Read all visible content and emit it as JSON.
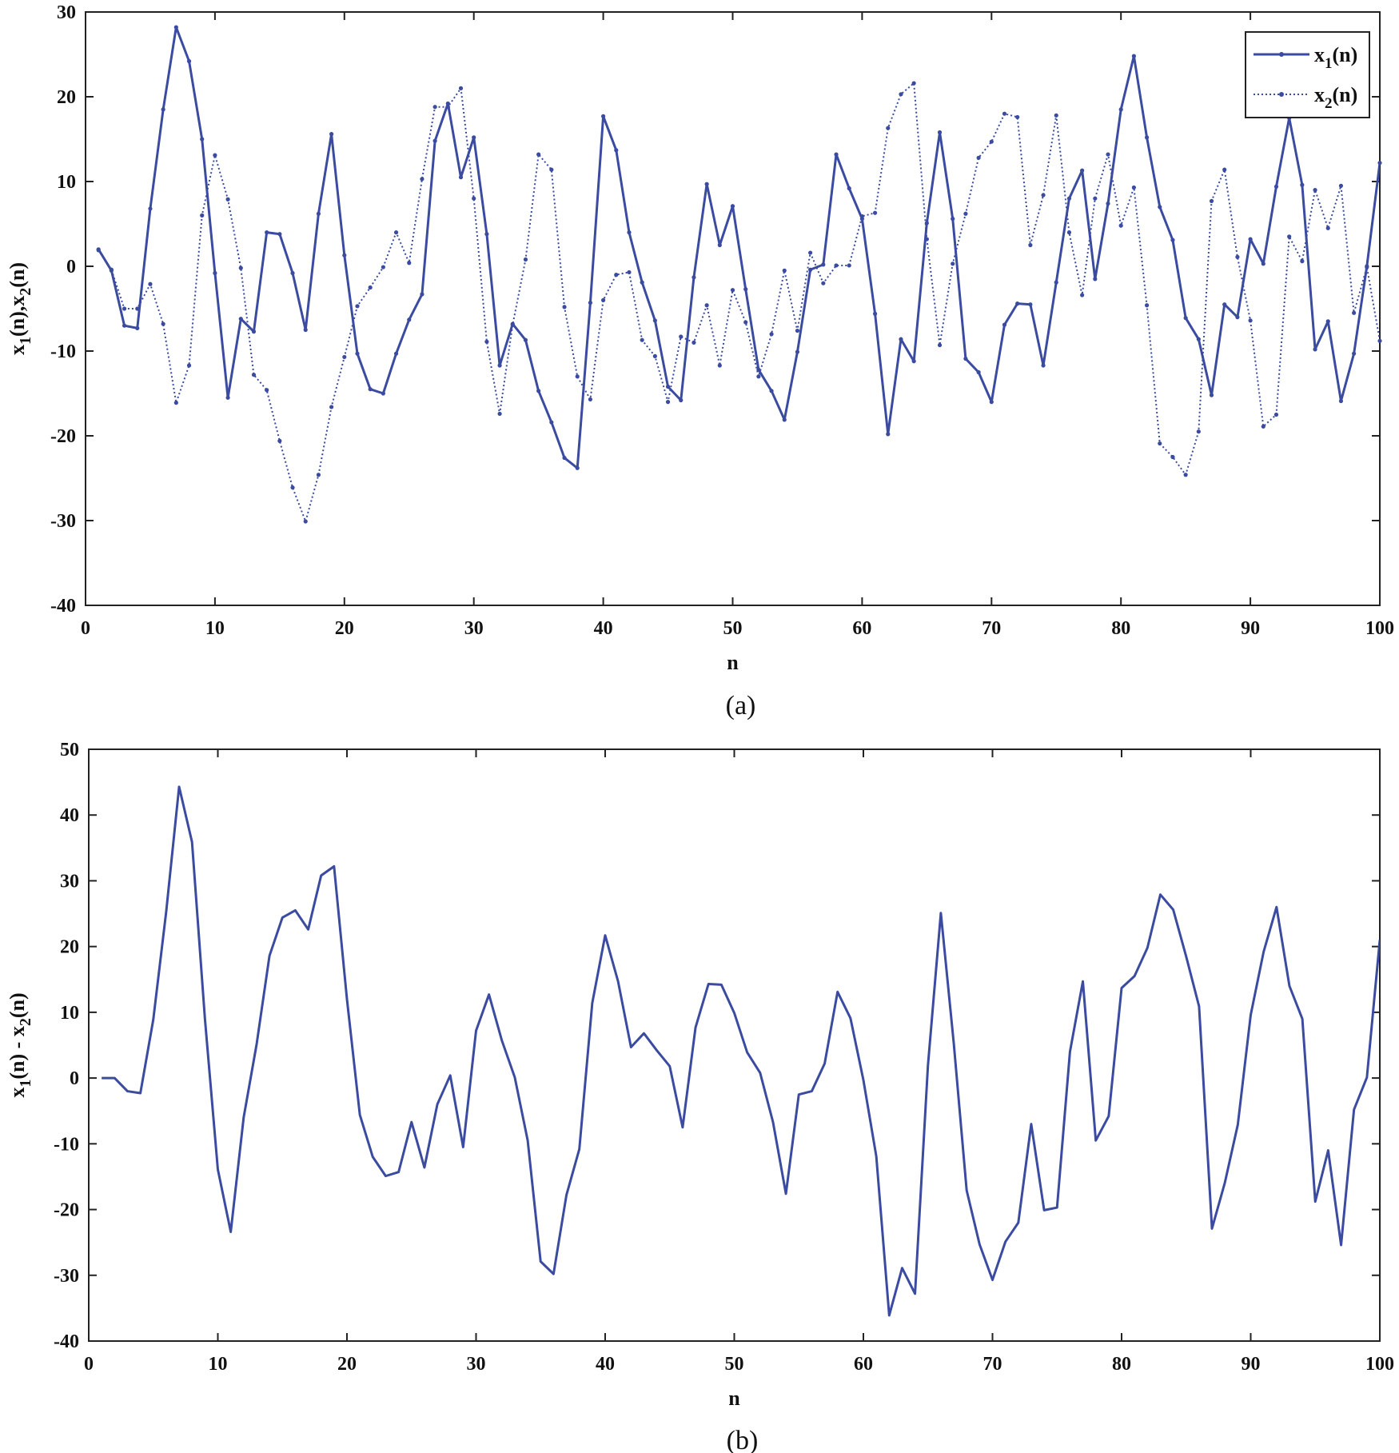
{
  "chart_data": [
    {
      "type": "line",
      "caption": "(a)",
      "xlabel": "n",
      "ylabel": {
        "parts": [
          [
            "x",
            "1",
            "(n),"
          ],
          [
            "x",
            "2",
            "(n)"
          ]
        ]
      },
      "xlim": [
        0,
        100
      ],
      "ylim": [
        -40,
        30
      ],
      "xticks": [
        0,
        10,
        20,
        30,
        40,
        50,
        60,
        70,
        80,
        90,
        100
      ],
      "yticks": [
        -40,
        -30,
        -20,
        -10,
        0,
        10,
        20,
        30
      ],
      "grid": false,
      "legend_position": "top-right",
      "x": [
        1,
        2,
        3,
        4,
        5,
        6,
        7,
        8,
        9,
        10,
        11,
        12,
        13,
        14,
        15,
        16,
        17,
        18,
        19,
        20,
        21,
        22,
        23,
        24,
        25,
        26,
        27,
        28,
        29,
        30,
        31,
        32,
        33,
        34,
        35,
        36,
        37,
        38,
        39,
        40,
        41,
        42,
        43,
        44,
        45,
        46,
        47,
        48,
        49,
        50,
        51,
        52,
        53,
        54,
        55,
        56,
        57,
        58,
        59,
        60,
        61,
        62,
        63,
        64,
        65,
        66,
        67,
        68,
        69,
        70,
        71,
        72,
        73,
        74,
        75,
        76,
        77,
        78,
        79,
        80,
        81,
        82,
        83,
        84,
        85,
        86,
        87,
        88,
        89,
        90,
        91,
        92,
        93,
        94,
        95,
        96,
        97,
        98,
        99,
        100
      ],
      "series": [
        {
          "name": "x1(n)",
          "legend": {
            "base": "x",
            "sub": "1",
            "rest": "(n)"
          },
          "style": "solid",
          "color": "#3a4ba0",
          "values": [
            2,
            -0.5,
            -7,
            -7.3,
            6.8,
            18.5,
            28.2,
            24.2,
            15,
            -0.8,
            -15.5,
            -6.2,
            -7.7,
            4,
            3.8,
            -0.8,
            -7.5,
            6.2,
            15.6,
            1.3,
            -10.3,
            -14.5,
            -15,
            -10.3,
            -6.3,
            -3.3,
            14.8,
            19.2,
            10.5,
            15.2,
            3.8,
            -11.7,
            -6.8,
            -8.7,
            -14.7,
            -18.4,
            -22.6,
            -23.8,
            -4.3,
            17.7,
            13.7,
            4,
            -1.9,
            -6.4,
            -14.2,
            -15.8,
            -1.3,
            9.7,
            2.5,
            7.1,
            -2.7,
            -12.2,
            -14.7,
            -18.1,
            -10.1,
            -0.4,
            0.2,
            13.2,
            9.2,
            5.6,
            -5.6,
            -19.8,
            -8.6,
            -11.2,
            5.1,
            15.8,
            5.6,
            -10.9,
            -12.5,
            -16,
            -6.9,
            -4.4,
            -4.5,
            -11.7,
            -1.9,
            8,
            11.3,
            -1.5,
            7.4,
            18.5,
            24.8,
            15.2,
            7,
            3.1,
            -6.1,
            -8.6,
            -15.2,
            -4.5,
            -6,
            3.2,
            0.3,
            9.4,
            17.5,
            9.6,
            -9.8,
            -6.5,
            -15.9,
            -10.3,
            0,
            12.2
          ]
        },
        {
          "name": "x2(n)",
          "legend": {
            "base": "x",
            "sub": "2",
            "rest": "(n)"
          },
          "style": "dotted",
          "color": "#3a4ba0",
          "values": [
            1.9,
            -0.4,
            -5,
            -5,
            -2.1,
            -6.8,
            -16.1,
            -11.7,
            6,
            13.1,
            7.9,
            -0.2,
            -12.8,
            -14.6,
            -20.6,
            -26.1,
            -30.1,
            -24.6,
            -16.6,
            -10.7,
            -4.7,
            -2.5,
            -0.1,
            4,
            0.4,
            10.3,
            18.8,
            18.8,
            21,
            8,
            -8.9,
            -17.4,
            -6.9,
            0.8,
            13.2,
            11.4,
            -4.8,
            -13,
            -15.7,
            -4,
            -1,
            -0.7,
            -8.7,
            -10.6,
            -16,
            -8.3,
            -9,
            -4.6,
            -11.7,
            -2.8,
            -6.6,
            -13,
            -8,
            -0.5,
            -7.6,
            1.6,
            -2,
            0.1,
            0.1,
            5.9,
            6.3,
            16.3,
            20.3,
            21.6,
            3.2,
            -9.3,
            0.3,
            6.2,
            12.8,
            14.7,
            18,
            17.6,
            2.5,
            8.4,
            17.8,
            4,
            -3.4,
            8,
            13.2,
            4.8,
            9.3,
            -4.6,
            -20.9,
            -22.5,
            -24.6,
            -19.5,
            7.7,
            11.4,
            1.1,
            -6.4,
            -18.9,
            -17.5,
            3.5,
            0.6,
            9,
            4.5,
            9.5,
            -5.5,
            -0.1,
            -8.8
          ]
        }
      ]
    },
    {
      "type": "line",
      "caption": "(b)",
      "xlabel": "n",
      "ylabel": {
        "parts": [
          [
            "x",
            "1",
            "(n) - "
          ],
          [
            "x",
            "2",
            "(n)"
          ]
        ]
      },
      "xlim": [
        0,
        100
      ],
      "ylim": [
        -40,
        50
      ],
      "xticks": [
        0,
        10,
        20,
        30,
        40,
        50,
        60,
        70,
        80,
        90,
        100
      ],
      "yticks": [
        -40,
        -30,
        -20,
        -10,
        0,
        10,
        20,
        30,
        40,
        50
      ],
      "grid": false,
      "x": [
        1,
        2,
        3,
        4,
        5,
        6,
        7,
        8,
        9,
        10,
        11,
        12,
        13,
        14,
        15,
        16,
        17,
        18,
        19,
        20,
        21,
        22,
        23,
        24,
        25,
        26,
        27,
        28,
        29,
        30,
        31,
        32,
        33,
        34,
        35,
        36,
        37,
        38,
        39,
        40,
        41,
        42,
        43,
        44,
        45,
        46,
        47,
        48,
        49,
        50,
        51,
        52,
        53,
        54,
        55,
        56,
        57,
        58,
        59,
        60,
        61,
        62,
        63,
        64,
        65,
        66,
        67,
        68,
        69,
        70,
        71,
        72,
        73,
        74,
        75,
        76,
        77,
        78,
        79,
        80,
        81,
        82,
        83,
        84,
        85,
        86,
        87,
        88,
        89,
        90,
        91,
        92,
        93,
        94,
        95,
        96,
        97,
        98,
        99,
        100
      ],
      "series": [
        {
          "style": "solid",
          "color": "#3a4ba0",
          "values": [
            0,
            0,
            -2,
            -2.3,
            8.9,
            25.3,
            44.3,
            35.9,
            9,
            -13.9,
            -23.4,
            -6,
            5.1,
            18.6,
            24.4,
            25.5,
            22.6,
            30.8,
            32.2,
            12,
            -5.6,
            -12,
            -14.9,
            -14.3,
            -6.7,
            -13.6,
            -4,
            0.4,
            -10.5,
            7.2,
            12.7,
            5.7,
            0.1,
            -9.5,
            -27.9,
            -29.8,
            -17.8,
            -10.8,
            11.4,
            21.7,
            14.7,
            4.7,
            6.8,
            4.2,
            1.8,
            -7.5,
            7.7,
            14.3,
            14.2,
            9.9,
            3.9,
            0.8,
            -6.7,
            -17.6,
            -2.5,
            -2,
            2.2,
            13.1,
            9.1,
            -0.3,
            -11.9,
            -36.1,
            -28.9,
            -32.8,
            1.9,
            25.1,
            5.3,
            -17.1,
            -25.3,
            -30.7,
            -24.9,
            -22,
            -7,
            -20.1,
            -19.7,
            4,
            14.7,
            -9.5,
            -5.8,
            13.7,
            15.5,
            19.8,
            27.9,
            25.6,
            18.5,
            10.9,
            -22.9,
            -15.9,
            -7.1,
            9.6,
            19.2,
            26,
            14,
            9,
            -18.8,
            -11,
            -25.4,
            -4.8,
            0.1,
            21
          ]
        }
      ]
    }
  ]
}
